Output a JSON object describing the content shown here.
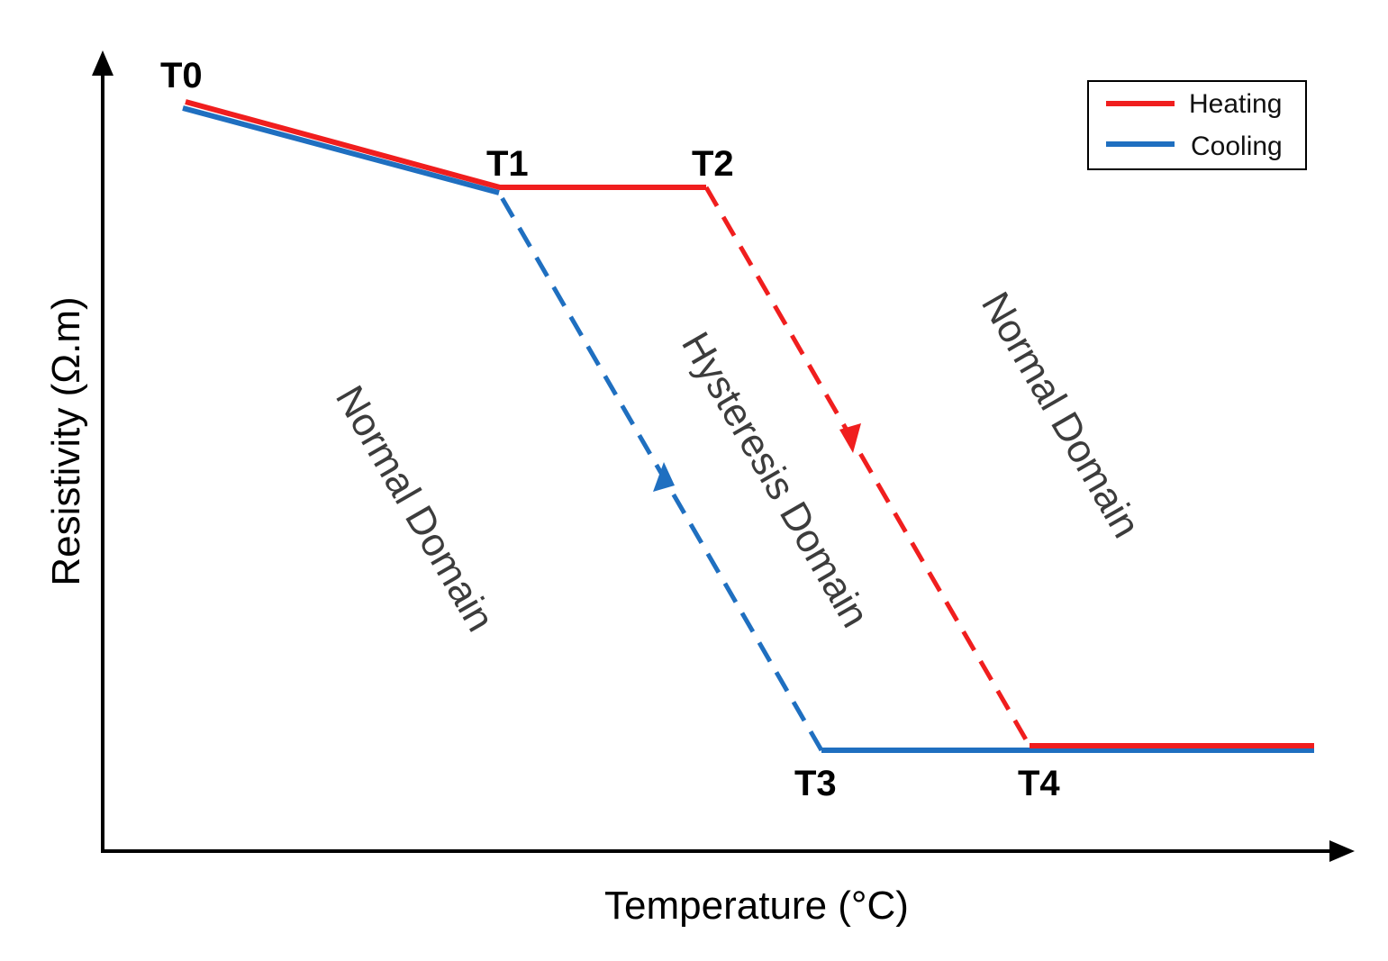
{
  "colors": {
    "heating": "#f01e1e",
    "cooling": "#1f6fc0",
    "axis": "#000000"
  },
  "axes": {
    "x_label": "Temperature (°C)",
    "y_label": "Resistivity (Ω.m)"
  },
  "temperature_points": [
    "T0",
    "T1",
    "T2",
    "T3",
    "T4"
  ],
  "domains": {
    "left": "Normal Domain",
    "middle": "Hysteresis Domain",
    "right": "Normal Domain"
  },
  "legend": {
    "heating": "Heating",
    "cooling": "Cooling"
  },
  "curves": {
    "heating": [
      "T0",
      "T1",
      "T2",
      "T4",
      "end"
    ],
    "cooling": [
      "end",
      "T3",
      "T1",
      "T0"
    ]
  }
}
